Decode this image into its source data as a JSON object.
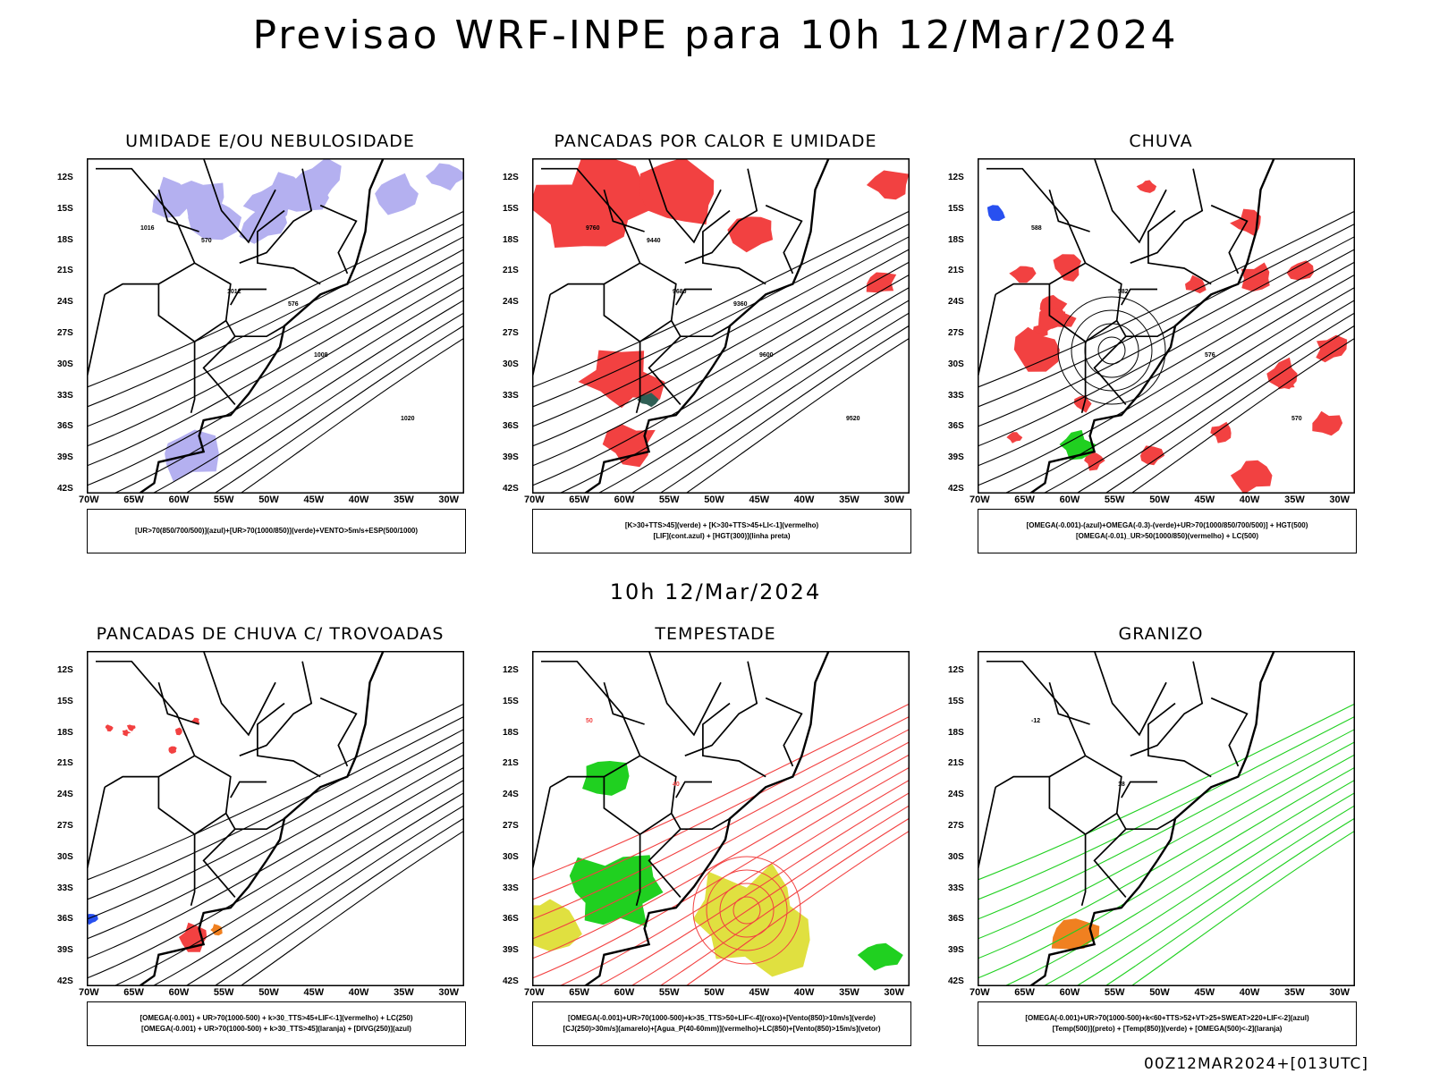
{
  "title": "Previsao WRF-INPE  para 10h 12/Mar/2024",
  "mid_date": "10h 12/Mar/2024",
  "footer": "00Z12MAR2024+[013UTC]",
  "lat_labels": [
    "12S",
    "15S",
    "18S",
    "21S",
    "24S",
    "27S",
    "30S",
    "33S",
    "36S",
    "39S",
    "42S"
  ],
  "lon_labels": [
    "70W",
    "65W",
    "60W",
    "55W",
    "50W",
    "45W",
    "40W",
    "35W",
    "30W"
  ],
  "colors": {
    "red": "#f24141",
    "green": "#20d020",
    "blue": "#2850f0",
    "lavender": "#b4b0f0",
    "yellow": "#e0e040",
    "orange": "#f08020",
    "darkteal": "#2f5f55",
    "black": "#000000"
  },
  "panels": [
    {
      "title": "UMIDADE E/OU NEBULOSIDADE",
      "legend": [
        "[UR>70(850/700/500)](azul)+[UR>70(1000/850)](verde)+VENTO>5m/s+ESP(500/1000)"
      ],
      "fills": [
        "lavender",
        "green"
      ],
      "contour_color": "black",
      "labels": [
        "1016",
        "1012",
        "1008",
        "1020",
        "570",
        "576"
      ]
    },
    {
      "title": "PANCADAS POR CALOR E UMIDADE",
      "legend": [
        "[K>30+TTS>45](verde) + [K>30+TTS>45+LI<-1](vermelho)",
        "[LIF](cont.azul) + [HGT(300)](linha preta)"
      ],
      "fills": [
        "red",
        "darkteal"
      ],
      "contour_color": "black",
      "labels": [
        "9760",
        "9680",
        "9600",
        "9520",
        "9440",
        "9360"
      ]
    },
    {
      "title": "CHUVA",
      "legend": [
        "[OMEGA(-0.001)-(azul)+OMEGA(-0.3)-(verde)+UR>70(1000/850/700/500)] + HGT(500)",
        "[OMEGA(-0.01)_UR>50(1000/850)(vermelho) + LC(500)"
      ],
      "fills": [
        "red",
        "blue",
        "green"
      ],
      "contour_color": "black",
      "labels": [
        "588",
        "582",
        "576",
        "570"
      ]
    },
    {
      "title": "PANCADAS DE CHUVA C/ TROVOADAS",
      "legend": [
        "[OMEGA(-0.001) + UR>70(1000-500) + k>30_TTS>45+LIF<-1](vermelho) + LC(250)",
        "[OMEGA(-0.001) + UR>70(1000-500) + k>30_TTS>45](laranja) + [DIVG(250)](azul)"
      ],
      "fills": [
        "red",
        "orange",
        "blue"
      ],
      "contour_color": "black",
      "labels": []
    },
    {
      "title": "TEMPESTADE",
      "legend": [
        "[OMEGA(-0.001)+UR>70(1000-500)+k>35_TTS>50+LIF<-4](roxo)+[Vento(850)>10m/s](verde)",
        "[CJ(250)>30m/s](amarelo)+[Agua_P(40-60mm)](vermelho)+LC(850)+[Vento(850)>15m/s](vetor)"
      ],
      "fills": [
        "green",
        "yellow"
      ],
      "contour_color": "red",
      "labels": [
        "50",
        "40"
      ]
    },
    {
      "title": "GRANIZO",
      "legend": [
        "[OMEGA(-0.001)+UR>70(1000-500)+k<60+TTS>52+VT>25+SWEAT>220+LIF<-2](azul)",
        "[Temp(500)](preto) + [Temp(850)](verde) + [OMEGA(500)<-2](laranja)"
      ],
      "fills": [
        "orange"
      ],
      "contour_color": "green",
      "labels": [
        "-12",
        "18"
      ]
    }
  ]
}
